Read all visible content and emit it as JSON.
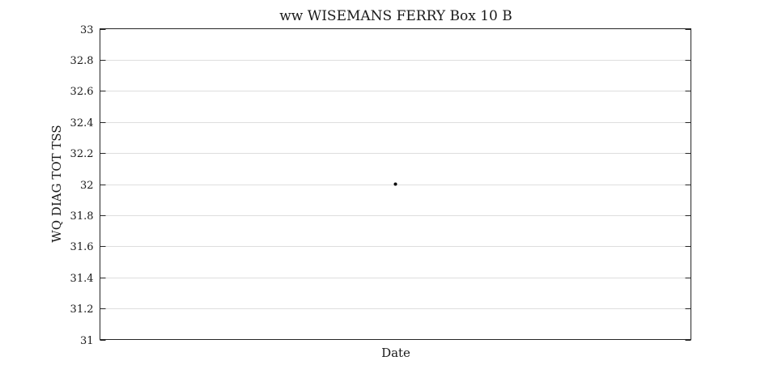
{
  "chart_data": {
    "type": "scatter",
    "title": "ww WISEMANS FERRY Box 10 B",
    "xlabel": "Date",
    "ylabel": "WQ DIAG TOT TSS",
    "ylim": [
      31,
      33
    ],
    "yticks": [
      "31",
      "31.2",
      "31.4",
      "31.6",
      "31.8",
      "32",
      "32.2",
      "32.4",
      "32.6",
      "32.8",
      "33"
    ],
    "grid": true,
    "series": [
      {
        "values": [
          32
        ],
        "x_fraction": [
          0.5
        ],
        "color": "#000000"
      }
    ]
  }
}
